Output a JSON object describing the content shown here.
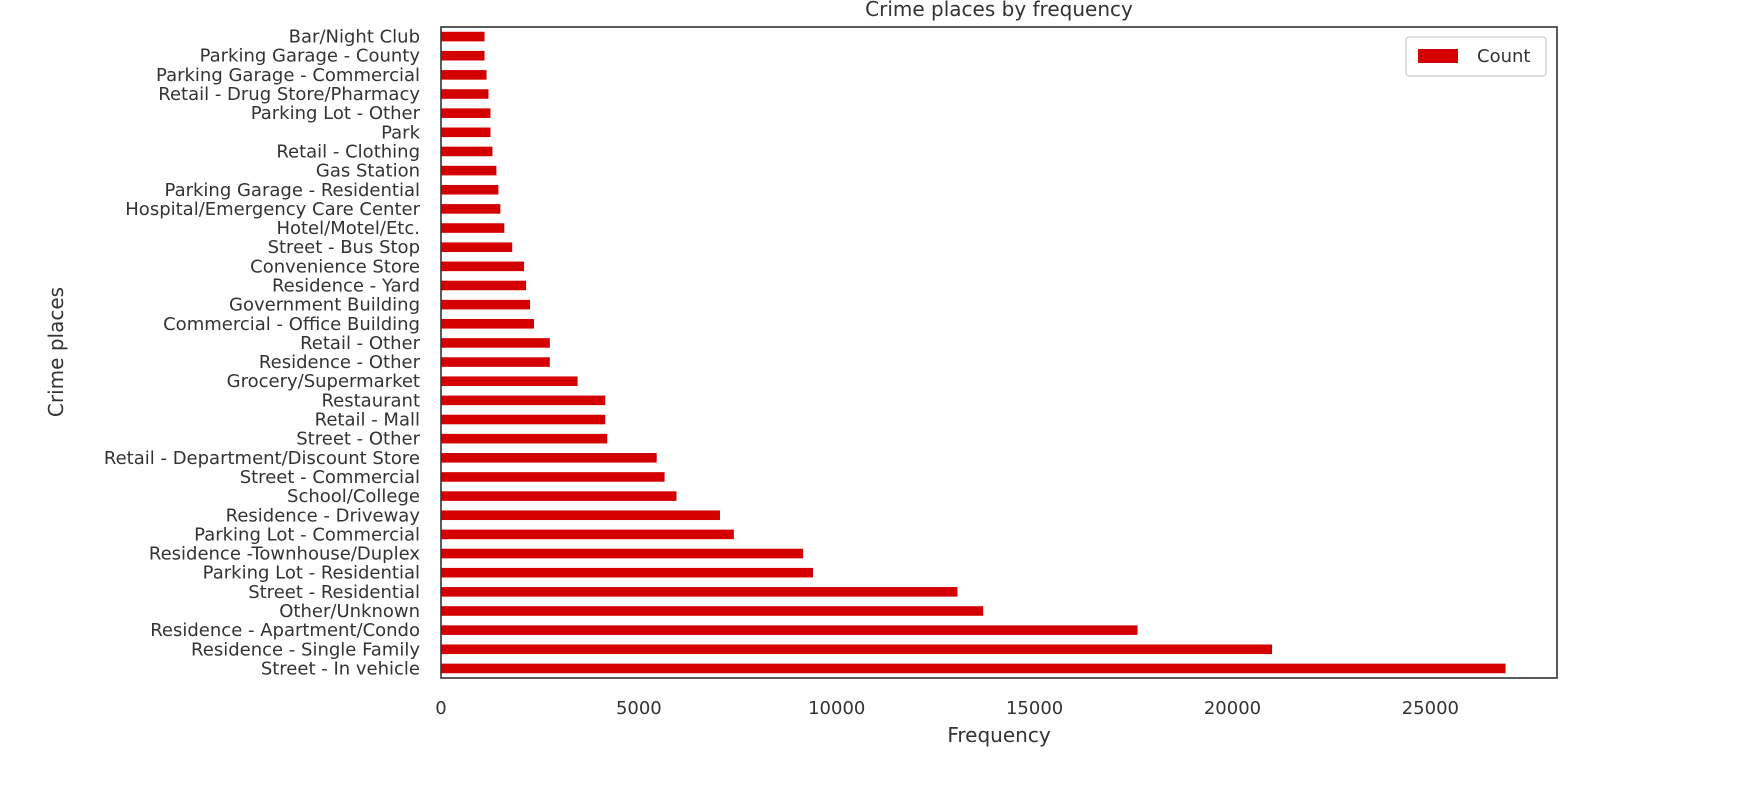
{
  "chart_data": {
    "type": "bar",
    "orientation": "horizontal",
    "title": "Crime places by frequency",
    "xlabel": "Frequency",
    "ylabel": "Crime places",
    "xlim": [
      0,
      28200
    ],
    "xticks": [
      0,
      5000,
      10000,
      15000,
      20000,
      25000
    ],
    "grid": false,
    "legend_position": "top-right",
    "categories": [
      "Street - In vehicle",
      "Residence - Single Family",
      "Residence - Apartment/Condo",
      "Other/Unknown",
      "Street - Residential",
      "Parking Lot - Residential",
      "Residence -Townhouse/Duplex",
      "Parking Lot - Commercial",
      "Residence - Driveway",
      "School/College",
      "Street - Commercial",
      "Retail - Department/Discount Store",
      "Street - Other",
      "Retail - Mall",
      "Restaurant",
      "Grocery/Supermarket",
      "Residence - Other",
      "Retail - Other",
      "Commercial - Office Building",
      "Government Building",
      "Residence - Yard",
      "Convenience Store",
      "Street - Bus Stop",
      "Hotel/Motel/Etc.",
      "Hospital/Emergency Care Center",
      "Parking Garage - Residential",
      "Gas Station",
      "Retail - Clothing",
      "Park",
      "Parking Lot - Other",
      "Retail - Drug Store/Pharmacy",
      "Parking Garage - Commercial",
      "Parking Garage - County",
      "Bar/Night Club"
    ],
    "series": [
      {
        "name": "Count",
        "color": "#d40000",
        "values": [
          26900,
          21000,
          17600,
          13700,
          13050,
          9400,
          9150,
          7400,
          7050,
          5950,
          5650,
          5450,
          4200,
          4150,
          4150,
          3450,
          2750,
          2750,
          2350,
          2250,
          2150,
          2100,
          1800,
          1600,
          1500,
          1450,
          1400,
          1300,
          1250,
          1250,
          1200,
          1150,
          1100,
          1100
        ]
      }
    ]
  }
}
